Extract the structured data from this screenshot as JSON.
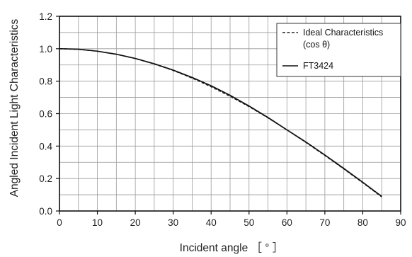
{
  "chart_data": {
    "type": "line",
    "xlabel": "Incident angle ［ ° ］",
    "ylabel": "Angled Incident Light Characteristics",
    "xlim": [
      0,
      90
    ],
    "ylim": [
      0,
      1.2
    ],
    "x_ticks": [
      0,
      10,
      20,
      30,
      40,
      50,
      60,
      70,
      80,
      90
    ],
    "y_ticks": [
      0.0,
      0.2,
      0.4,
      0.6,
      0.8,
      1.0,
      1.2
    ],
    "x_tick_labels": [
      "0",
      "10",
      "20",
      "30",
      "40",
      "50",
      "60",
      "70",
      "80",
      "90"
    ],
    "y_tick_labels": [
      "0.0",
      "0.2",
      "0.4",
      "0.6",
      "0.8",
      "1.0",
      "1.2"
    ],
    "x_minor_step": 5,
    "y_minor_step": 0.1,
    "grid": true,
    "legend_position": "top-right",
    "series": [
      {
        "name": "Ideal Characteristics (cos θ)",
        "legend_lines": [
          "Ideal Characteristics",
          "(cos θ)"
        ],
        "style": "dashed",
        "color": "#222222",
        "x": [
          0,
          5,
          10,
          15,
          20,
          25,
          30,
          35,
          40,
          45,
          50,
          55,
          60,
          65,
          70,
          75,
          80,
          85
        ],
        "y": [
          1.0,
          0.996,
          0.985,
          0.966,
          0.94,
          0.906,
          0.866,
          0.819,
          0.766,
          0.707,
          0.643,
          0.574,
          0.5,
          0.423,
          0.342,
          0.259,
          0.174,
          0.087
        ]
      },
      {
        "name": "FT3424",
        "legend_lines": [
          "FT3424"
        ],
        "style": "solid",
        "color": "#111111",
        "x": [
          0,
          5,
          10,
          15,
          20,
          25,
          30,
          35,
          40,
          45,
          50,
          55,
          60,
          65,
          70,
          75,
          80,
          85
        ],
        "y": [
          1.0,
          0.997,
          0.985,
          0.966,
          0.94,
          0.907,
          0.868,
          0.823,
          0.772,
          0.713,
          0.647,
          0.576,
          0.5,
          0.425,
          0.345,
          0.262,
          0.177,
          0.09
        ]
      }
    ]
  }
}
